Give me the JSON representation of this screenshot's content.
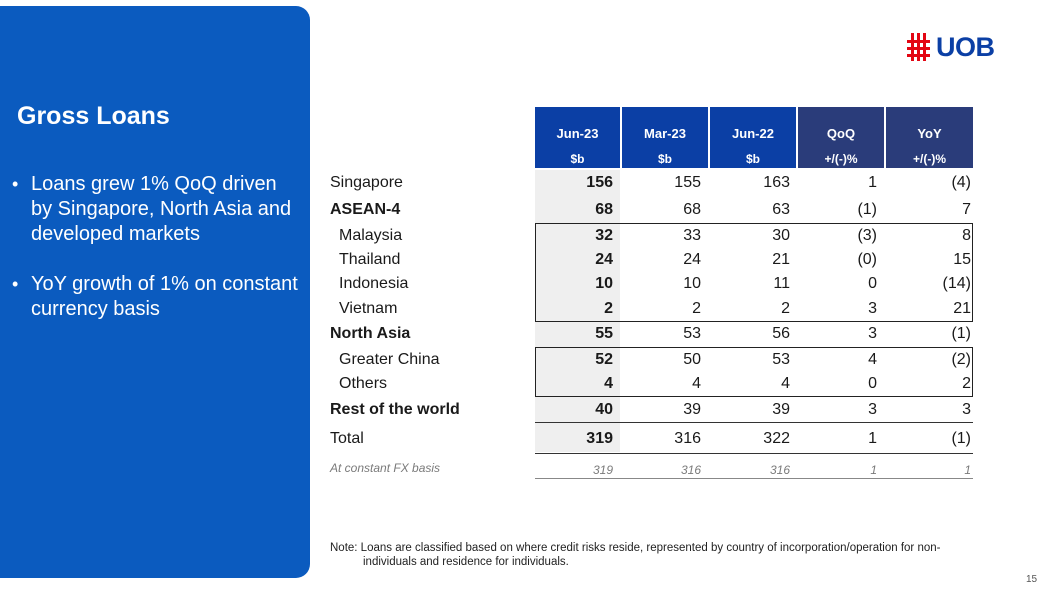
{
  "panel": {
    "title": "Gross Loans",
    "bullets": [
      "Loans grew 1% QoQ driven by Singapore, North Asia and developed markets",
      "YoY growth of 1% on constant currency basis"
    ]
  },
  "logo": {
    "text": "UOB",
    "color": "#0b3fa5",
    "mark_color": "#e30613"
  },
  "table": {
    "columns": [
      {
        "label": "Jun-23",
        "unit": "$b"
      },
      {
        "label": "Mar-23",
        "unit": "$b"
      },
      {
        "label": "Jun-22",
        "unit": "$b"
      },
      {
        "label": "QoQ",
        "unit": "+/(-)%"
      },
      {
        "label": "YoY",
        "unit": "+/(-)%"
      }
    ],
    "rows": [
      {
        "label": "Singapore",
        "values": [
          "156",
          "155",
          "163",
          "1",
          "(4)"
        ]
      },
      {
        "label": "ASEAN-4",
        "values": [
          "68",
          "68",
          "63",
          "(1)",
          "7"
        ]
      },
      {
        "label": "Malaysia",
        "values": [
          "32",
          "33",
          "30",
          "(3)",
          "8"
        ]
      },
      {
        "label": "Thailand",
        "values": [
          "24",
          "24",
          "21",
          "(0)",
          "15"
        ]
      },
      {
        "label": "Indonesia",
        "values": [
          "10",
          "10",
          "11",
          "0",
          "(14)"
        ]
      },
      {
        "label": "Vietnam",
        "values": [
          "2",
          "2",
          "2",
          "3",
          "21"
        ]
      },
      {
        "label": "North Asia",
        "values": [
          "55",
          "53",
          "56",
          "3",
          "(1)"
        ]
      },
      {
        "label": "Greater China",
        "values": [
          "52",
          "50",
          "53",
          "4",
          "(2)"
        ]
      },
      {
        "label": "Others",
        "values": [
          "4",
          "4",
          "4",
          "0",
          "2"
        ]
      },
      {
        "label": "Rest of the world",
        "values": [
          "40",
          "39",
          "39",
          "3",
          "3"
        ]
      },
      {
        "label": "Total",
        "values": [
          "319",
          "316",
          "322",
          "1",
          "(1)"
        ]
      }
    ],
    "constant_fx": {
      "label": "At constant FX basis",
      "values": [
        "319",
        "316",
        "316",
        "1",
        "1"
      ]
    }
  },
  "note": {
    "line1": "Note: Loans are classified based on where credit risks reside, represented by country of incorporation/operation for non-",
    "line2": "individuals and residence for individuals."
  },
  "page_number": "15"
}
